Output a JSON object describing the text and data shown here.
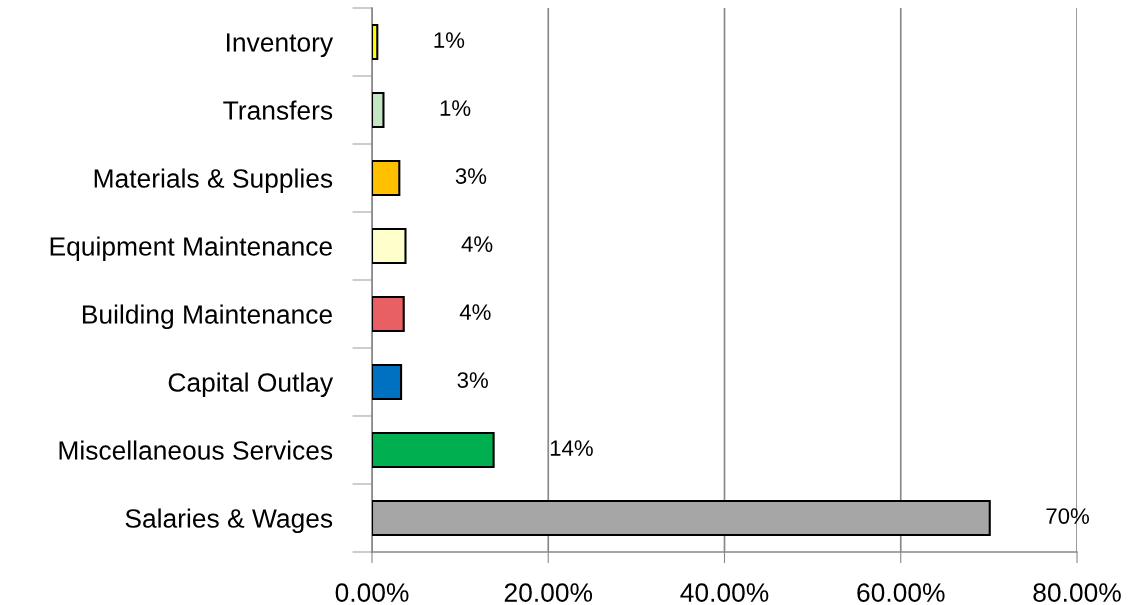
{
  "chart_data": {
    "type": "bar",
    "orientation": "horizontal",
    "categories": [
      "Inventory",
      "Transfers",
      "Materials & Supplies",
      "Equipment Maintenance",
      "Building Maintenance",
      "Capital Outlay",
      "Miscellaneous Services",
      "Salaries & Wages"
    ],
    "values": [
      0.6,
      1.3,
      3.1,
      3.8,
      3.6,
      3.3,
      13.8,
      70.1
    ],
    "colors": [
      "#ffff00",
      "#c3e6c3",
      "#ffc000",
      "#ffffcc",
      "#e96064",
      "#0070c0",
      "#00b050",
      "#a6a6a6"
    ],
    "value_labels": [
      "1%",
      "1%",
      "3%",
      "4%",
      "4%",
      "3%",
      "14%",
      "70%"
    ],
    "xlim": [
      0,
      80
    ],
    "xticks": [
      {
        "value": 0,
        "label": "0.00%"
      },
      {
        "value": 20,
        "label": "20.00%"
      },
      {
        "value": 40,
        "label": "40.00%"
      },
      {
        "value": 60,
        "label": "60.00%"
      },
      {
        "value": 80,
        "label": "80.00%"
      }
    ],
    "grid": "x",
    "legend": false
  }
}
